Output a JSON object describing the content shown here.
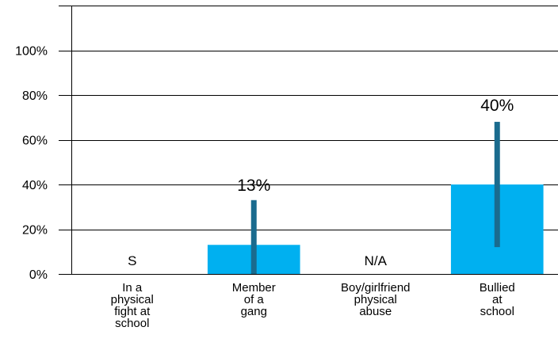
{
  "chart_data": {
    "type": "bar",
    "title": "",
    "xlabel": "",
    "ylabel": "",
    "ylim": [
      0,
      120
    ],
    "yticks": [
      "0%",
      "20%",
      "40%",
      "60%",
      "80%",
      "100%"
    ],
    "ytick_values": [
      0,
      20,
      40,
      60,
      80,
      100
    ],
    "grid": true,
    "categories": [
      [
        "In a",
        "physical",
        "fight at",
        "school"
      ],
      [
        "Member",
        "of a",
        "gang"
      ],
      [
        "Boy/girlfriend",
        "physical",
        "abuse"
      ],
      [
        "Bullied",
        "at",
        "school"
      ]
    ],
    "values": [
      null,
      13,
      null,
      40
    ],
    "bar_labels": [
      "S",
      "13%",
      "N/A",
      "40%"
    ],
    "error_bars": [
      null,
      [
        0,
        33
      ],
      null,
      [
        12,
        68
      ]
    ],
    "colors": {
      "bar": "#00b0f0",
      "error": "#1a6b8e",
      "grid": "#000000"
    }
  }
}
